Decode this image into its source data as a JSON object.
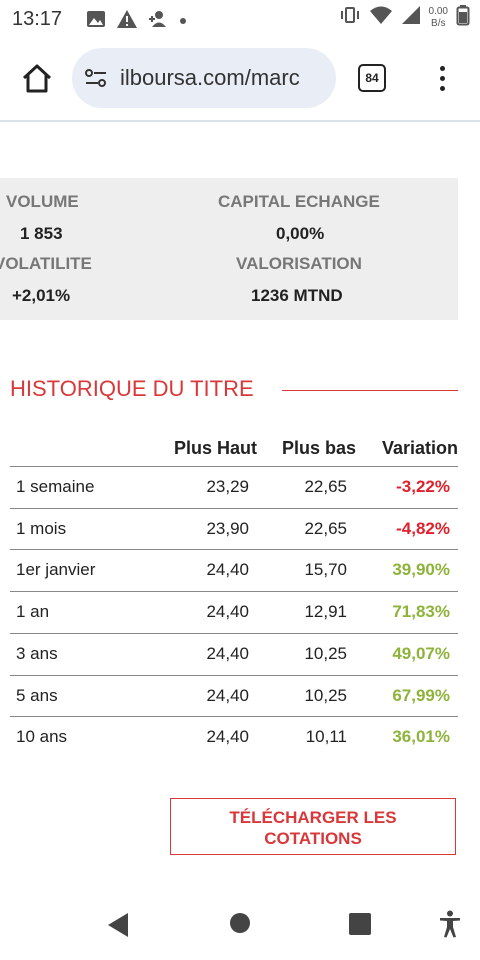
{
  "status_bar": {
    "time": "13:17",
    "left_icons": [
      "image-icon",
      "warning-icon",
      "person-add-icon",
      "dot-icon"
    ],
    "right_icons": [
      "vibrate-icon",
      "wifi-icon",
      "signal-icon",
      "battery-icon"
    ],
    "speed_value": "0.00",
    "speed_unit": "B/s"
  },
  "browser": {
    "url": "ilboursa.com/marc",
    "tab_count": "84"
  },
  "stats": {
    "volume_label": "VOLUME",
    "volume_value": "1 853",
    "capital_label": "CAPITAL ECHANGE",
    "capital_value": "0,00%",
    "volatilite_label": "VOLATILITE",
    "volatilite_value": "+2,01%",
    "valorisation_label": "VALORISATION",
    "valorisation_value": "1236 MTND"
  },
  "history": {
    "title": "HISTORIQUE DU TITRE",
    "headers": {
      "high": "Plus Haut",
      "low": "Plus bas",
      "variation": "Variation"
    },
    "rows": [
      {
        "label": "1 semaine",
        "high": "23,29",
        "low": "22,65",
        "variation": "-3,22%"
      },
      {
        "label": "1 mois",
        "high": "23,90",
        "low": "22,65",
        "variation": "-4,82%"
      },
      {
        "label": "1er janvier",
        "high": "24,40",
        "low": "15,70",
        "variation": "39,90%"
      },
      {
        "label": "1 an",
        "high": "24,40",
        "low": "12,91",
        "variation": "71,83%"
      },
      {
        "label": "3 ans",
        "high": "24,40",
        "low": "10,25",
        "variation": "49,07%"
      },
      {
        "label": "5 ans",
        "high": "24,40",
        "low": "10,25",
        "variation": "67,99%"
      },
      {
        "label": "10 ans",
        "high": "24,40",
        "low": "10,11",
        "variation": "36,01%"
      }
    ],
    "colors": {
      "negative": "#e0202c",
      "positive": "#8db33a"
    }
  },
  "download": {
    "line1": "TÉLÉCHARGER LES",
    "line2": "COTATIONS"
  },
  "colors": {
    "accent": "#d9383a",
    "panel_bg": "#eeeeee",
    "url_bg": "#e9edf6"
  }
}
